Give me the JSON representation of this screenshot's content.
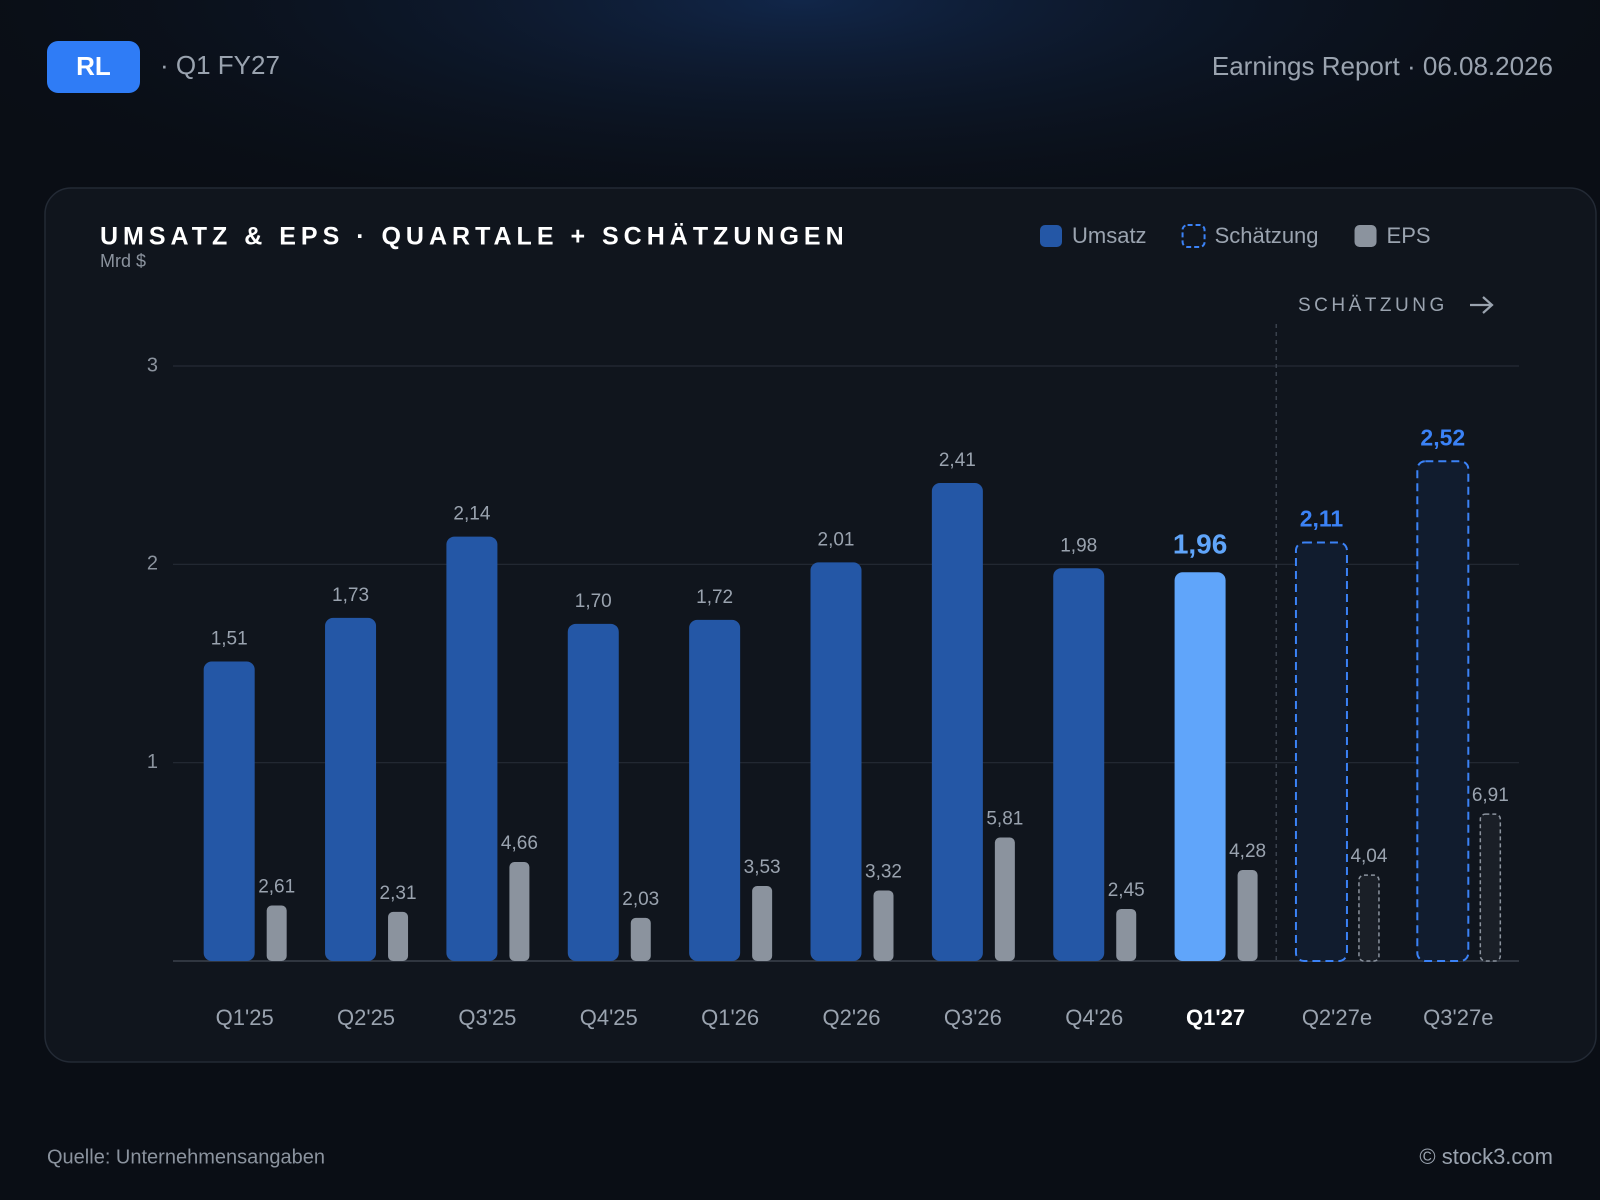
{
  "header": {
    "badge": "RL",
    "period": "· Q1 FY27",
    "report": "Earnings Report · 06.08.2026"
  },
  "footer": {
    "source": "Quelle: Unternehmensangaben",
    "credit": "© stock3.com"
  },
  "chart_data": {
    "type": "bar",
    "title": "UMSATZ & EPS · QUARTALE + SCHÄTZUNGEN",
    "subtitle": "Mrd $",
    "annotation": "SCHÄTZUNG",
    "categories": [
      "Q1'25",
      "Q2'25",
      "Q3'25",
      "Q4'25",
      "Q1'26",
      "Q2'26",
      "Q3'26",
      "Q4'26",
      "Q1'27",
      "Q2'27e",
      "Q3'27e"
    ],
    "highlight": "Q1'27",
    "series": [
      {
        "name": "Umsatz",
        "color": "#2457a6",
        "highlight_color": "#60a5fa",
        "values": [
          1.51,
          1.73,
          2.14,
          1.7,
          1.72,
          2.01,
          2.41,
          1.98,
          1.96,
          null,
          null
        ],
        "value_labels": [
          "1,51",
          "1,73",
          "2,14",
          "1,70",
          "1,72",
          "2,01",
          "2,41",
          "1,98",
          "1,96",
          null,
          null
        ]
      },
      {
        "name": "Schätzung",
        "color": "#3b82f6",
        "style": "dashed",
        "values": [
          null,
          null,
          null,
          null,
          null,
          null,
          null,
          null,
          null,
          2.11,
          2.52
        ],
        "value_labels": [
          null,
          null,
          null,
          null,
          null,
          null,
          null,
          null,
          null,
          "2,11",
          "2,52"
        ]
      },
      {
        "name": "EPS",
        "color": "#8b939e",
        "axis": "y2",
        "values": [
          2.61,
          2.31,
          4.66,
          2.03,
          3.53,
          3.32,
          5.81,
          2.45,
          4.28,
          4.04,
          6.91
        ],
        "value_labels": [
          "2,61",
          "2,31",
          "4,66",
          "2,03",
          "3,53",
          "3,32",
          "5,81",
          "2,45",
          "4,28",
          "4,04",
          "6,91"
        ]
      }
    ],
    "ylim": [
      0,
      3
    ],
    "yticks": [
      1,
      2,
      3
    ],
    "y2lim": [
      0,
      28
    ],
    "grid": true,
    "legend": "top-right"
  }
}
